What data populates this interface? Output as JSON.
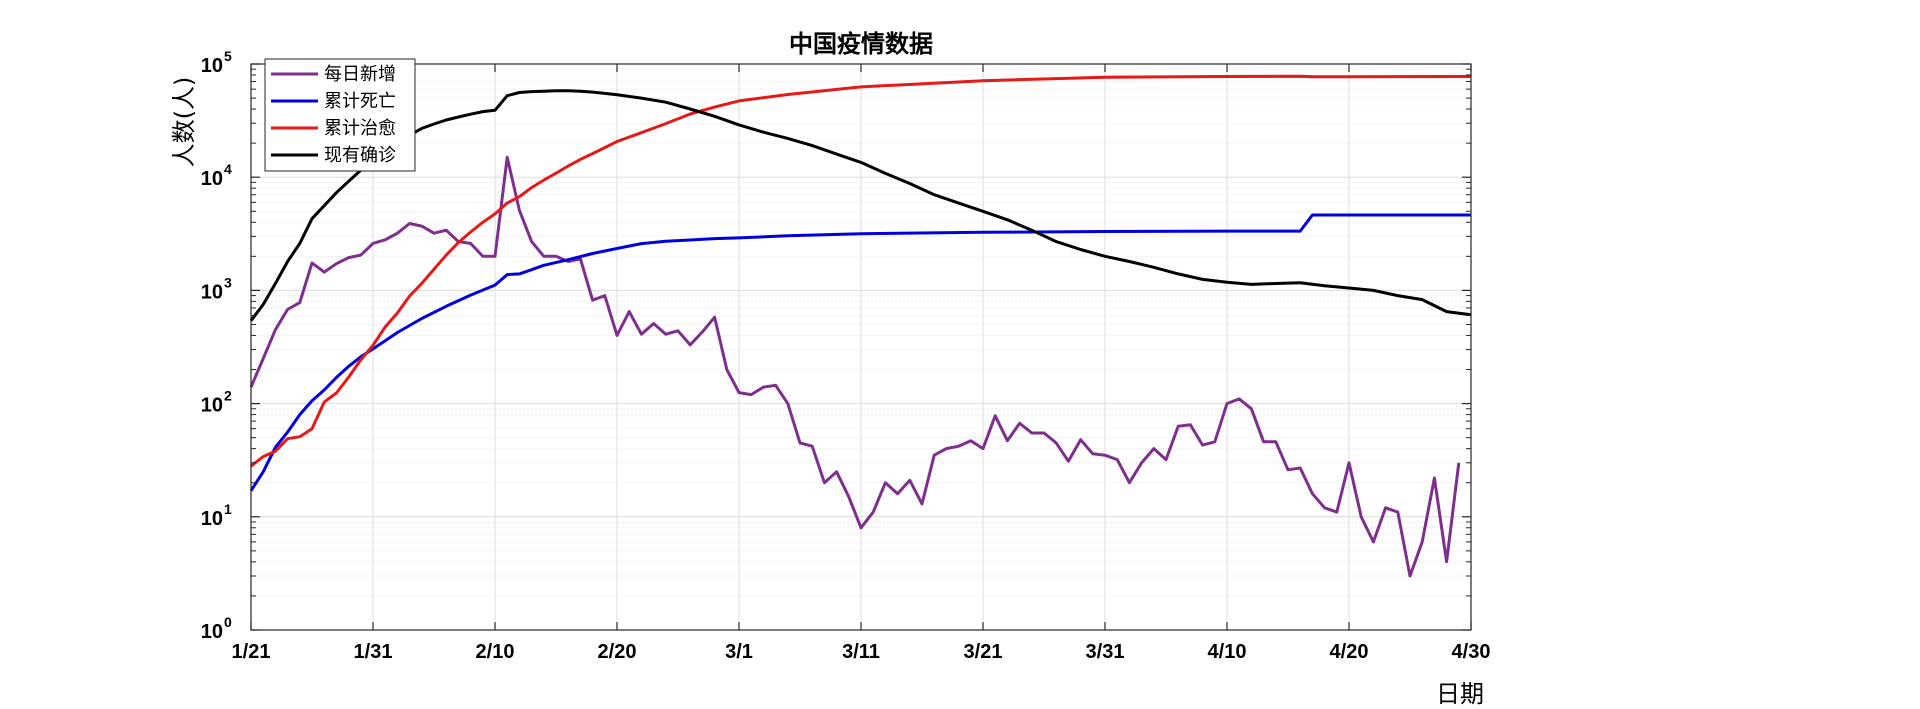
{
  "chart_data": {
    "type": "line",
    "title": "中国疫情数据",
    "xlabel": "日期",
    "ylabel": "人数(人)",
    "y_scale": "log",
    "ylim": [
      1,
      100000
    ],
    "xlim": [
      "1/21",
      "4/30"
    ],
    "x_ticks": [
      "1/21",
      "1/31",
      "2/10",
      "2/20",
      "3/1",
      "3/11",
      "3/21",
      "3/31",
      "4/10",
      "4/20",
      "4/30"
    ],
    "y_ticks": [
      {
        "base": "10",
        "exp": "0",
        "value": 1
      },
      {
        "base": "10",
        "exp": "1",
        "value": 10
      },
      {
        "base": "10",
        "exp": "2",
        "value": 100
      },
      {
        "base": "10",
        "exp": "3",
        "value": 1000
      },
      {
        "base": "10",
        "exp": "4",
        "value": 10000
      },
      {
        "base": "10",
        "exp": "5",
        "value": 100000
      }
    ],
    "grid": true,
    "legend_position": "top-left",
    "series": [
      {
        "name": "每日新增",
        "color": "#7E2F8E",
        "points": [
          [
            "1/21",
            140
          ],
          [
            "1/22",
            250
          ],
          [
            "1/23",
            450
          ],
          [
            "1/24",
            680
          ],
          [
            "1/25",
            780
          ],
          [
            "1/26",
            1750
          ],
          [
            "1/27",
            1450
          ],
          [
            "1/28",
            1720
          ],
          [
            "1/29",
            1950
          ],
          [
            "1/30",
            2050
          ],
          [
            "1/31",
            2600
          ],
          [
            "2/1",
            2800
          ],
          [
            "2/2",
            3200
          ],
          [
            "2/3",
            3900
          ],
          [
            "2/4",
            3700
          ],
          [
            "2/5",
            3200
          ],
          [
            "2/6",
            3400
          ],
          [
            "2/7",
            2700
          ],
          [
            "2/8",
            2600
          ],
          [
            "2/9",
            2000
          ],
          [
            "2/10",
            2000
          ],
          [
            "2/11",
            15000
          ],
          [
            "2/12",
            5100
          ],
          [
            "2/13",
            2700
          ],
          [
            "2/14",
            2000
          ],
          [
            "2/15",
            2000
          ],
          [
            "2/16",
            1800
          ],
          [
            "2/17",
            1900
          ],
          [
            "2/18",
            820
          ],
          [
            "2/19",
            900
          ],
          [
            "2/20",
            400
          ],
          [
            "2/21",
            650
          ],
          [
            "2/22",
            410
          ],
          [
            "2/23",
            510
          ],
          [
            "2/24",
            410
          ],
          [
            "2/25",
            440
          ],
          [
            "2/26",
            330
          ],
          [
            "2/27",
            430
          ],
          [
            "2/28",
            580
          ],
          [
            "2/29",
            200
          ],
          [
            "3/1",
            125
          ],
          [
            "3/2",
            120
          ],
          [
            "3/3",
            140
          ],
          [
            "3/4",
            145
          ],
          [
            "3/5",
            100
          ],
          [
            "3/6",
            45
          ],
          [
            "3/7",
            42
          ],
          [
            "3/8",
            20
          ],
          [
            "3/9",
            25
          ],
          [
            "3/10",
            15
          ],
          [
            "3/11",
            8
          ],
          [
            "3/12",
            11
          ],
          [
            "3/13",
            20
          ],
          [
            "3/14",
            16
          ],
          [
            "3/15",
            21
          ],
          [
            "3/16",
            13
          ],
          [
            "3/17",
            35
          ],
          [
            "3/18",
            40
          ],
          [
            "3/19",
            42
          ],
          [
            "3/20",
            47
          ],
          [
            "3/21",
            40
          ],
          [
            "3/22",
            78
          ],
          [
            "3/23",
            47
          ],
          [
            "3/24",
            67
          ],
          [
            "3/25",
            55
          ],
          [
            "3/26",
            55
          ],
          [
            "3/27",
            45
          ],
          [
            "3/28",
            31
          ],
          [
            "3/29",
            48
          ],
          [
            "3/30",
            36
          ],
          [
            "3/31",
            35
          ],
          [
            "4/1",
            32
          ],
          [
            "4/2",
            20
          ],
          [
            "4/3",
            30
          ],
          [
            "4/4",
            40
          ],
          [
            "4/5",
            32
          ],
          [
            "4/6",
            63
          ],
          [
            "4/7",
            65
          ],
          [
            "4/8",
            43
          ],
          [
            "4/9",
            46
          ],
          [
            "4/10",
            100
          ],
          [
            "4/11",
            110
          ],
          [
            "4/12",
            90
          ],
          [
            "4/13",
            46
          ],
          [
            "4/14",
            46
          ],
          [
            "4/15",
            26
          ],
          [
            "4/16",
            27
          ],
          [
            "4/17",
            16
          ],
          [
            "4/18",
            12
          ],
          [
            "4/19",
            11
          ],
          [
            "4/20",
            30
          ],
          [
            "4/21",
            10
          ],
          [
            "4/22",
            6
          ],
          [
            "4/23",
            12
          ],
          [
            "4/24",
            11
          ],
          [
            "4/25",
            3
          ],
          [
            "4/26",
            6
          ],
          [
            "4/27",
            22
          ],
          [
            "4/28",
            4
          ],
          [
            "4/29",
            30
          ]
        ]
      },
      {
        "name": "累计死亡",
        "color": "#0000DD",
        "points": [
          [
            "1/21",
            17
          ],
          [
            "1/22",
            25
          ],
          [
            "1/23",
            41
          ],
          [
            "1/24",
            56
          ],
          [
            "1/25",
            80
          ],
          [
            "1/26",
            106
          ],
          [
            "1/27",
            132
          ],
          [
            "1/28",
            170
          ],
          [
            "1/29",
            213
          ],
          [
            "1/30",
            259
          ],
          [
            "1/31",
            304
          ],
          [
            "2/2",
            425
          ],
          [
            "2/4",
            565
          ],
          [
            "2/6",
            724
          ],
          [
            "2/8",
            908
          ],
          [
            "2/10",
            1113
          ],
          [
            "2/11",
            1380
          ],
          [
            "2/12",
            1400
          ],
          [
            "2/13",
            1523
          ],
          [
            "2/14",
            1665
          ],
          [
            "2/16",
            1868
          ],
          [
            "2/18",
            2118
          ],
          [
            "2/20",
            2345
          ],
          [
            "2/22",
            2592
          ],
          [
            "2/24",
            2715
          ],
          [
            "2/26",
            2788
          ],
          [
            "2/28",
            2870
          ],
          [
            "3/1",
            2912
          ],
          [
            "3/5",
            3042
          ],
          [
            "3/11",
            3169
          ],
          [
            "3/21",
            3261
          ],
          [
            "3/31",
            3312
          ],
          [
            "4/10",
            3339
          ],
          [
            "4/16",
            3342
          ],
          [
            "4/17",
            4632
          ],
          [
            "4/20",
            4632
          ],
          [
            "4/30",
            4633
          ]
        ]
      },
      {
        "name": "累计治愈",
        "color": "#E61919",
        "points": [
          [
            "1/21",
            28
          ],
          [
            "1/22",
            34
          ],
          [
            "1/23",
            38
          ],
          [
            "1/24",
            49
          ],
          [
            "1/25",
            51
          ],
          [
            "1/26",
            60
          ],
          [
            "1/27",
            103
          ],
          [
            "1/28",
            124
          ],
          [
            "1/29",
            171
          ],
          [
            "1/30",
            243
          ],
          [
            "1/31",
            328
          ],
          [
            "2/1",
            475
          ],
          [
            "2/2",
            632
          ],
          [
            "2/3",
            892
          ],
          [
            "2/4",
            1153
          ],
          [
            "2/5",
            1540
          ],
          [
            "2/6",
            2050
          ],
          [
            "2/7",
            2649
          ],
          [
            "2/8",
            3281
          ],
          [
            "2/9",
            3996
          ],
          [
            "2/10",
            4740
          ],
          [
            "2/11",
            5911
          ],
          [
            "2/12",
            6723
          ],
          [
            "2/13",
            8096
          ],
          [
            "2/14",
            9419
          ],
          [
            "2/15",
            10844
          ],
          [
            "2/16",
            12552
          ],
          [
            "2/17",
            14376
          ],
          [
            "2/18",
            16155
          ],
          [
            "2/19",
            18264
          ],
          [
            "2/20",
            20659
          ],
          [
            "2/22",
            24734
          ],
          [
            "2/24",
            29745
          ],
          [
            "2/26",
            36157
          ],
          [
            "2/28",
            41625
          ],
          [
            "3/1",
            47204
          ],
          [
            "3/5",
            53726
          ],
          [
            "3/11",
            62793
          ],
          [
            "3/21",
            71150
          ],
          [
            "3/31",
            76238
          ],
          [
            "4/10",
            77474
          ],
          [
            "4/16",
            77892
          ],
          [
            "4/17",
            77000
          ],
          [
            "4/20",
            77200
          ],
          [
            "4/30",
            77600
          ]
        ]
      },
      {
        "name": "现有确诊",
        "color": "#000000",
        "points": [
          [
            "1/21",
            540
          ],
          [
            "1/22",
            750
          ],
          [
            "1/23",
            1150
          ],
          [
            "1/24",
            1800
          ],
          [
            "1/25",
            2600
          ],
          [
            "1/26",
            4300
          ],
          [
            "1/27",
            5600
          ],
          [
            "1/28",
            7300
          ],
          [
            "1/29",
            9200
          ],
          [
            "1/30",
            11500
          ],
          [
            "1/31",
            14500
          ],
          [
            "2/1",
            17500
          ],
          [
            "2/2",
            20500
          ],
          [
            "2/3",
            23500
          ],
          [
            "2/4",
            27000
          ],
          [
            "2/5",
            29500
          ],
          [
            "2/6",
            32000
          ],
          [
            "2/7",
            34000
          ],
          [
            "2/8",
            36000
          ],
          [
            "2/9",
            38000
          ],
          [
            "2/10",
            39000
          ],
          [
            "2/11",
            52500
          ],
          [
            "2/12",
            56000
          ],
          [
            "2/13",
            57000
          ],
          [
            "2/14",
            57500
          ],
          [
            "2/15",
            58000
          ],
          [
            "2/16",
            58000
          ],
          [
            "2/17",
            57500
          ],
          [
            "2/18",
            56500
          ],
          [
            "2/19",
            55000
          ],
          [
            "2/20",
            53500
          ],
          [
            "2/22",
            50000
          ],
          [
            "2/24",
            46000
          ],
          [
            "2/26",
            40000
          ],
          [
            "2/28",
            34500
          ],
          [
            "3/1",
            29000
          ],
          [
            "3/3",
            25000
          ],
          [
            "3/5",
            22000
          ],
          [
            "3/7",
            19000
          ],
          [
            "3/9",
            16000
          ],
          [
            "3/11",
            13500
          ],
          [
            "3/13",
            10800
          ],
          [
            "3/15",
            8800
          ],
          [
            "3/17",
            7000
          ],
          [
            "3/19",
            5900
          ],
          [
            "3/21",
            5000
          ],
          [
            "3/23",
            4200
          ],
          [
            "3/25",
            3400
          ],
          [
            "3/27",
            2700
          ],
          [
            "3/29",
            2300
          ],
          [
            "3/31",
            2000
          ],
          [
            "4/2",
            1800
          ],
          [
            "4/4",
            1600
          ],
          [
            "4/6",
            1400
          ],
          [
            "4/8",
            1250
          ],
          [
            "4/10",
            1180
          ],
          [
            "4/12",
            1130
          ],
          [
            "4/14",
            1150
          ],
          [
            "4/16",
            1170
          ],
          [
            "4/18",
            1100
          ],
          [
            "4/20",
            1050
          ],
          [
            "4/22",
            1000
          ],
          [
            "4/24",
            900
          ],
          [
            "4/26",
            830
          ],
          [
            "4/28",
            650
          ],
          [
            "4/30",
            610
          ]
        ]
      }
    ]
  }
}
